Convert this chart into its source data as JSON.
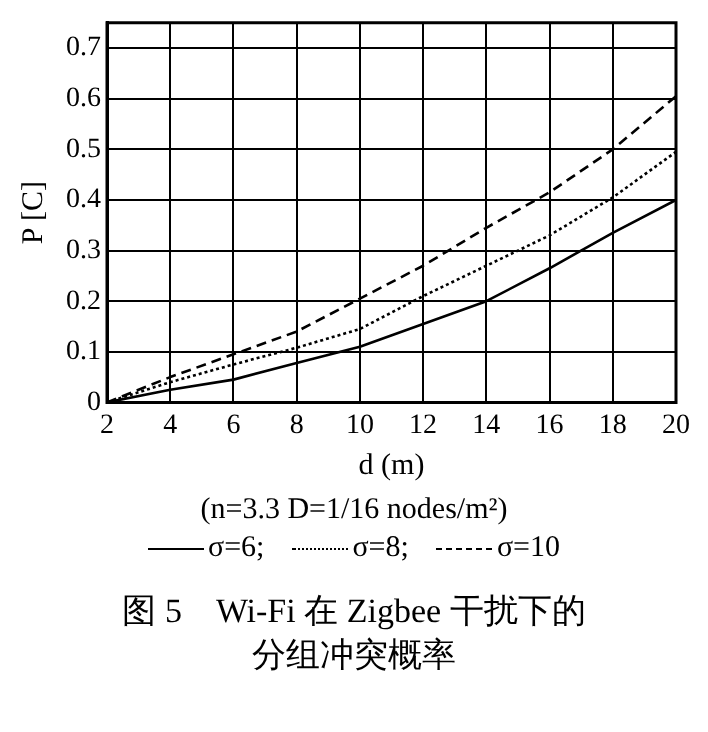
{
  "chart_data": {
    "type": "line",
    "title": "图 5　Wi-Fi 在 Zigbee 干扰下的分组冲突概率",
    "subtitle": "(n=3.3  D=1/16 nodes/m²)",
    "xlabel": "d (m)",
    "ylabel": "P [C]",
    "x": [
      2,
      4,
      6,
      8,
      10,
      12,
      14,
      16,
      18,
      20
    ],
    "series": [
      {
        "name": "σ=6;",
        "color": "#000000",
        "line_style": "solid",
        "values": [
          0,
          0.025,
          0.045,
          0.078,
          0.11,
          0.155,
          0.2,
          0.265,
          0.335,
          0.4
        ]
      },
      {
        "name": "σ=8;",
        "color": "#000000",
        "line_style": "dotted",
        "values": [
          0,
          0.04,
          0.075,
          0.108,
          0.145,
          0.21,
          0.27,
          0.33,
          0.405,
          0.495
        ]
      },
      {
        "name": "σ=10",
        "color": "#000000",
        "line_style": "dashed",
        "values": [
          0,
          0.05,
          0.095,
          0.14,
          0.205,
          0.27,
          0.345,
          0.415,
          0.5,
          0.605
        ]
      }
    ],
    "xlim": [
      2,
      20
    ],
    "xticks": [
      2,
      4,
      6,
      8,
      10,
      12,
      14,
      16,
      18,
      20
    ],
    "ylim": [
      0,
      0.75
    ],
    "yticks": [
      0,
      0.1,
      0.2,
      0.3,
      0.4,
      0.5,
      0.6,
      0.7
    ],
    "grid": true,
    "legend": "bottom",
    "marker": "none"
  }
}
